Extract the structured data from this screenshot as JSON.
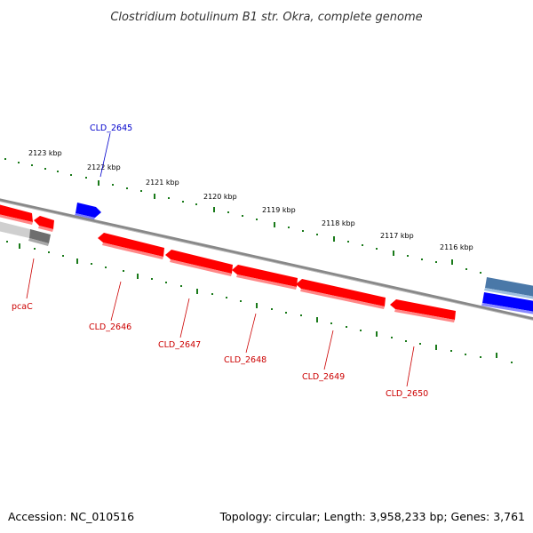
{
  "title": "Clostridium botulinum B1 str. Okra, complete genome",
  "accession": "Accession: NC_010516",
  "topology": "Topology: circular; Length: 3,958,233 bp; Genes: 3,761",
  "kbp_labels": [
    "2123 kbp",
    "2122 kbp",
    "2121 kbp",
    "2120 kbp",
    "2119 kbp",
    "2118 kbp",
    "2117 kbp",
    "2116 kbp"
  ],
  "gene_labels": {
    "g2645": "CLD_2645",
    "pcaC": "pcaC",
    "g2646": "CLD_2646",
    "g2647": "CLD_2647",
    "g2648": "CLD_2648",
    "g2649": "CLD_2649",
    "g2650": "CLD_2650"
  },
  "colors": {
    "forward_gene": "#0000ff",
    "reverse_gene": "#ff0000",
    "label_forward": "#0000cc",
    "label_reverse": "#cc0000",
    "backbone": "#777777",
    "tick": "#1a7a1a",
    "grey_gene": "#7a7a7a",
    "steel_gene": "#4a78a8"
  }
}
